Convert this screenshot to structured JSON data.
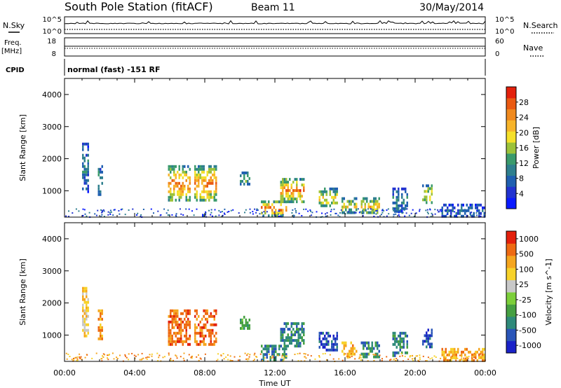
{
  "header": {
    "station": "South Pole Station (fitACF)",
    "beam": "Beam 11",
    "date": "30/May/2014"
  },
  "status_panels": {
    "nsky": {
      "label": "N.Sky",
      "ticks": [
        "10^5",
        "10^0"
      ]
    },
    "nsearch": {
      "label": "N.Search",
      "ticks": [
        "10^5",
        "10^0"
      ],
      "legend_marker": "dotted"
    },
    "freq": {
      "label_top": "Freq.",
      "label_unit": "[MHz]",
      "ticks": [
        "18",
        "8"
      ]
    },
    "nave": {
      "label": "Nave",
      "ticks": [
        "60",
        "0"
      ],
      "legend_marker": "dotted"
    },
    "cpid": {
      "label": "CPID",
      "mode": "normal (fast) -151 RF"
    }
  },
  "chart_data": [
    {
      "type": "heatmap",
      "title": "",
      "xlabel": "",
      "ylabel": "Slant Range [km]",
      "x_range_hours": [
        0,
        24
      ],
      "ylim": [
        180,
        4500
      ],
      "yticks": [
        1000,
        2000,
        3000,
        4000
      ],
      "xtick_labels": [
        "00:00",
        "04:00",
        "08:00",
        "12:00",
        "16:00",
        "20:00",
        "00:00"
      ],
      "colorbar": {
        "label": "Power [dB]",
        "min": 0,
        "max": 32,
        "tick_labels": [
          "4",
          "8",
          "12",
          "16",
          "20",
          "24",
          "28"
        ],
        "colors": [
          "#0a1aff",
          "#2233d0",
          "#1f5fb0",
          "#2e7f8e",
          "#3a9a6c",
          "#9cc23a",
          "#f5e02a",
          "#f7b42a",
          "#f08a1e",
          "#ea5a12",
          "#e3200c"
        ]
      },
      "echo_regions": [
        {
          "t": [
            1.0,
            1.4
          ],
          "r": [
            1000,
            2500
          ],
          "level": 0.25
        },
        {
          "t": [
            1.9,
            2.2
          ],
          "r": [
            900,
            1800
          ],
          "level": 0.3
        },
        {
          "t": [
            5.9,
            7.2
          ],
          "r": [
            700,
            1800
          ],
          "level": 0.7
        },
        {
          "t": [
            7.4,
            8.7
          ],
          "r": [
            700,
            1800
          ],
          "level": 0.7
        },
        {
          "t": [
            10.0,
            10.6
          ],
          "r": [
            1200,
            1600
          ],
          "level": 0.45
        },
        {
          "t": [
            11.2,
            12.6
          ],
          "r": [
            250,
            700
          ],
          "level": 0.75
        },
        {
          "t": [
            12.3,
            13.7
          ],
          "r": [
            700,
            1400
          ],
          "level": 0.7
        },
        {
          "t": [
            14.5,
            15.6
          ],
          "r": [
            500,
            1100
          ],
          "level": 0.55
        },
        {
          "t": [
            15.8,
            16.7
          ],
          "r": [
            300,
            800
          ],
          "level": 0.5
        },
        {
          "t": [
            16.9,
            18.0
          ],
          "r": [
            300,
            800
          ],
          "level": 0.6
        },
        {
          "t": [
            18.7,
            19.6
          ],
          "r": [
            400,
            1100
          ],
          "level": 0.3
        },
        {
          "t": [
            20.4,
            21.0
          ],
          "r": [
            600,
            1200
          ],
          "level": 0.55
        },
        {
          "t": [
            21.5,
            24.0
          ],
          "r": [
            250,
            600
          ],
          "level": 0.2
        }
      ]
    },
    {
      "type": "heatmap",
      "title": "",
      "xlabel": "Time UT",
      "ylabel": "Slant Range [km]",
      "x_range_hours": [
        0,
        24
      ],
      "ylim": [
        180,
        4500
      ],
      "yticks": [
        1000,
        2000,
        3000,
        4000
      ],
      "xtick_labels": [
        "00:00",
        "04:00",
        "08:00",
        "12:00",
        "16:00",
        "20:00",
        "00:00"
      ],
      "colorbar": {
        "label": "Velocity [m s^-1]",
        "tick_labels": [
          "1000",
          "500",
          "100",
          "25",
          "-25",
          "-100",
          "-500",
          "-1000"
        ],
        "colors": [
          "#1a22c8",
          "#2a55b8",
          "#2f8a7a",
          "#46a042",
          "#7ccf3a",
          "#c8c8c8",
          "#f7d22a",
          "#f5a51e",
          "#ee6a12",
          "#e3200c"
        ]
      },
      "echo_regions": [
        {
          "t": [
            1.0,
            1.4
          ],
          "r": [
            1000,
            2500
          ],
          "vel_index": 6
        },
        {
          "t": [
            1.9,
            2.2
          ],
          "r": [
            900,
            1800
          ],
          "vel_index": 7
        },
        {
          "t": [
            5.9,
            7.2
          ],
          "r": [
            700,
            1800
          ],
          "vel_index": 8
        },
        {
          "t": [
            7.4,
            8.7
          ],
          "r": [
            700,
            1800
          ],
          "vel_index": 8
        },
        {
          "t": [
            10.0,
            10.6
          ],
          "r": [
            1200,
            1600
          ],
          "vel_index": 3
        },
        {
          "t": [
            11.2,
            12.6
          ],
          "r": [
            250,
            700
          ],
          "vel_index": 2
        },
        {
          "t": [
            12.3,
            13.7
          ],
          "r": [
            700,
            1400
          ],
          "vel_index": 2
        },
        {
          "t": [
            14.5,
            15.6
          ],
          "r": [
            500,
            1100
          ],
          "vel_index": 1
        },
        {
          "t": [
            15.8,
            16.7
          ],
          "r": [
            300,
            800
          ],
          "vel_index": 7
        },
        {
          "t": [
            16.9,
            18.0
          ],
          "r": [
            300,
            800
          ],
          "vel_index": 2
        },
        {
          "t": [
            18.7,
            19.6
          ],
          "r": [
            400,
            1100
          ],
          "vel_index": 2
        },
        {
          "t": [
            20.4,
            21.0
          ],
          "r": [
            600,
            1200
          ],
          "vel_index": 1
        },
        {
          "t": [
            21.5,
            24.0
          ],
          "r": [
            250,
            600
          ],
          "vel_index": 7
        }
      ]
    }
  ]
}
